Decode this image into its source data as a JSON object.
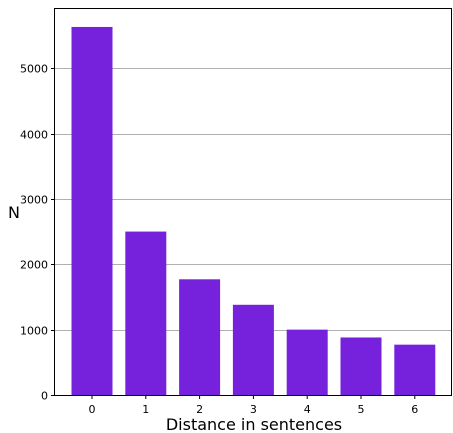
{
  "chart_data": {
    "type": "bar",
    "categories": [
      "0",
      "1",
      "2",
      "3",
      "4",
      "5",
      "6"
    ],
    "values": [
      5630,
      2500,
      1770,
      1380,
      1000,
      880,
      770
    ],
    "xlabel": "Distance in sentences",
    "ylabel": "N",
    "ylim": [
      0,
      5920
    ],
    "yticks": [
      0,
      1000,
      2000,
      3000,
      4000,
      5000
    ],
    "grid": "horizontal",
    "bar_color": "#7622dd"
  }
}
